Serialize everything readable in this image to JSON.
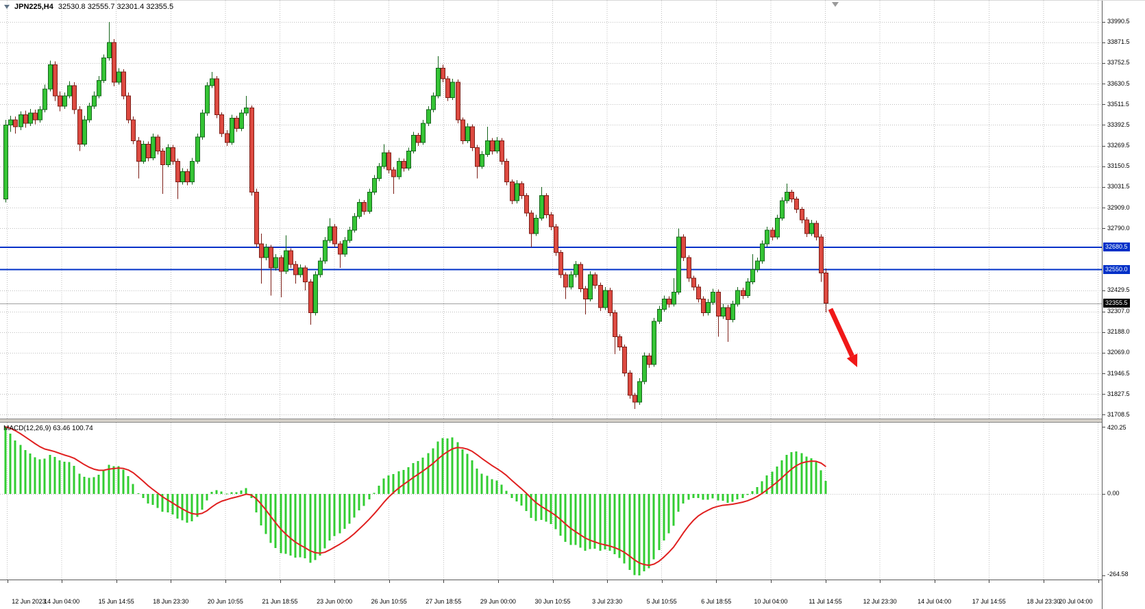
{
  "legend": {
    "symbol": "JPN225,H4",
    "ohlc": "32530.8 32555.7 32301.4 32355.5"
  },
  "chart_data": {
    "type": "candlestick",
    "symbol": "JPN225",
    "timeframe": "H4",
    "ohlc_current": {
      "open": 32530.8,
      "high": 32555.7,
      "low": 32301.4,
      "close": 32355.5
    },
    "ylim": [
      31685,
      34113
    ],
    "grid": true,
    "y_ticks": [
      "33990.5",
      "33871.5",
      "33752.5",
      "33630.5",
      "33511.5",
      "33392.5",
      "33269.5",
      "33150.5",
      "33031.5",
      "32909.0",
      "32790.0",
      "32429.5",
      "32307.0",
      "32188.0",
      "32069.0",
      "31946.5",
      "31827.5",
      "31708.5"
    ],
    "x_labels": [
      "12 Jun 2023",
      "14 Jun 04:00",
      "15 Jun 14:55",
      "18 Jun 23:30",
      "20 Jun 10:55",
      "21 Jun 18:55",
      "23 Jun 00:00",
      "26 Jun 10:55",
      "27 Jun 18:55",
      "29 Jun 00:00",
      "30 Jun 10:55",
      "3 Jul 23:30",
      "5 Jul 10:55",
      "6 Jul 18:55",
      "10 Jul 04:00",
      "11 Jul 14:55",
      "12 Jul 23:30",
      "14 Jul 04:00",
      "17 Jul 14:55",
      "18 Jul 23:30",
      "20 Jul 04:00"
    ],
    "horizontal_lines": [
      {
        "price": 32680.5,
        "label": "32680.5",
        "color": "#0030c8"
      },
      {
        "price": 32550.0,
        "label": "32550.0",
        "color": "#0030c8"
      }
    ],
    "bid": {
      "price": 32355.5,
      "label": "32355.5"
    },
    "annotations": [
      {
        "type": "arrow",
        "color": "#f01818",
        "from": {
          "x": 1212,
          "y": 450
        },
        "to": {
          "x": 1251,
          "y": 535
        }
      }
    ],
    "colors": {
      "up_fill": "#35c435",
      "up_stroke": "#14641a",
      "down_fill": "#dd4a41",
      "down_stroke": "#7c1d16",
      "grid": "#bcbcbc",
      "bid_line": "#a0a0a0",
      "axis_text": "#000000"
    },
    "candles": [
      [
        32960,
        33420,
        32940,
        33390
      ],
      [
        33390,
        33445,
        33350,
        33420
      ],
      [
        33420,
        33440,
        33340,
        33380
      ],
      [
        33380,
        33470,
        33360,
        33450
      ],
      [
        33450,
        33475,
        33375,
        33400
      ],
      [
        33400,
        33485,
        33385,
        33460
      ],
      [
        33460,
        33480,
        33395,
        33420
      ],
      [
        33420,
        33500,
        33405,
        33480
      ],
      [
        33480,
        33625,
        33465,
        33600
      ],
      [
        33600,
        33765,
        33585,
        33740
      ],
      [
        33740,
        33760,
        33530,
        33560
      ],
      [
        33560,
        33585,
        33470,
        33500
      ],
      [
        33500,
        33580,
        33485,
        33560
      ],
      [
        33560,
        33645,
        33545,
        33620
      ],
      [
        33620,
        33640,
        33455,
        33480
      ],
      [
        33480,
        33500,
        33240,
        33280
      ],
      [
        33280,
        33445,
        33265,
        33420
      ],
      [
        33420,
        33520,
        33405,
        33500
      ],
      [
        33500,
        33585,
        33485,
        33560
      ],
      [
        33560,
        33675,
        33545,
        33650
      ],
      [
        33650,
        33800,
        33635,
        33780
      ],
      [
        33780,
        33990,
        33765,
        33870
      ],
      [
        33870,
        33890,
        33615,
        33640
      ],
      [
        33640,
        33720,
        33625,
        33700
      ],
      [
        33700,
        33715,
        33540,
        33560
      ],
      [
        33560,
        33580,
        33400,
        33420
      ],
      [
        33420,
        33440,
        33280,
        33300
      ],
      [
        33300,
        33320,
        33080,
        33180
      ],
      [
        33180,
        33300,
        33165,
        33280
      ],
      [
        33280,
        33295,
        33180,
        33200
      ],
      [
        33200,
        33340,
        33185,
        33320
      ],
      [
        33320,
        33335,
        33220,
        33240
      ],
      [
        33240,
        33255,
        32990,
        33160
      ],
      [
        33160,
        33280,
        33145,
        33260
      ],
      [
        33260,
        33275,
        33160,
        33180
      ],
      [
        33180,
        33195,
        32960,
        33060
      ],
      [
        33060,
        33140,
        33045,
        33120
      ],
      [
        33120,
        33135,
        33040,
        33060
      ],
      [
        33060,
        33200,
        33045,
        33180
      ],
      [
        33180,
        33340,
        33165,
        33320
      ],
      [
        33320,
        33480,
        33305,
        33460
      ],
      [
        33460,
        33640,
        33445,
        33620
      ],
      [
        33620,
        33700,
        33605,
        33660
      ],
      [
        33660,
        33675,
        33430,
        33450
      ],
      [
        33450,
        33465,
        33320,
        33340
      ],
      [
        33340,
        33360,
        33270,
        33290
      ],
      [
        33290,
        33450,
        33275,
        33430
      ],
      [
        33430,
        33445,
        33350,
        33370
      ],
      [
        33370,
        33480,
        33355,
        33460
      ],
      [
        33460,
        33560,
        33445,
        33490
      ],
      [
        33490,
        33505,
        32980,
        33000
      ],
      [
        33000,
        33020,
        32680,
        32700
      ],
      [
        32700,
        32760,
        32470,
        32620
      ],
      [
        32620,
        32700,
        32605,
        32680
      ],
      [
        32680,
        32695,
        32400,
        32560
      ],
      [
        32560,
        32640,
        32545,
        32620
      ],
      [
        32620,
        32635,
        32390,
        32540
      ],
      [
        32540,
        32750,
        32525,
        32660
      ],
      [
        32660,
        32675,
        32560,
        32580
      ],
      [
        32580,
        32600,
        32470,
        32520
      ],
      [
        32520,
        32580,
        32505,
        32560
      ],
      [
        32560,
        32575,
        32430,
        32480
      ],
      [
        32480,
        32495,
        32230,
        32300
      ],
      [
        32300,
        32540,
        32285,
        32520
      ],
      [
        32520,
        32620,
        32505,
        32600
      ],
      [
        32600,
        32740,
        32585,
        32720
      ],
      [
        32720,
        32850,
        32705,
        32800
      ],
      [
        32800,
        32815,
        32680,
        32700
      ],
      [
        32700,
        32715,
        32560,
        32640
      ],
      [
        32640,
        32740,
        32625,
        32720
      ],
      [
        32720,
        32800,
        32705,
        32780
      ],
      [
        32780,
        32880,
        32765,
        32860
      ],
      [
        32860,
        32960,
        32845,
        32940
      ],
      [
        32940,
        32955,
        32870,
        32890
      ],
      [
        32890,
        33020,
        32875,
        33000
      ],
      [
        33000,
        33100,
        32985,
        33080
      ],
      [
        33080,
        33170,
        33065,
        33150
      ],
      [
        33150,
        33280,
        33135,
        33230
      ],
      [
        33230,
        33245,
        33110,
        33130
      ],
      [
        33130,
        33145,
        32990,
        33090
      ],
      [
        33090,
        33200,
        33075,
        33180
      ],
      [
        33180,
        33195,
        33120,
        33140
      ],
      [
        33140,
        33260,
        33125,
        33240
      ],
      [
        33240,
        33350,
        33225,
        33330
      ],
      [
        33330,
        33345,
        33270,
        33290
      ],
      [
        33290,
        33420,
        33275,
        33400
      ],
      [
        33400,
        33500,
        33385,
        33480
      ],
      [
        33480,
        33580,
        33465,
        33560
      ],
      [
        33560,
        33790,
        33545,
        33720
      ],
      [
        33720,
        33740,
        33640,
        33660
      ],
      [
        33660,
        33675,
        33530,
        33550
      ],
      [
        33550,
        33660,
        33535,
        33640
      ],
      [
        33640,
        33655,
        33400,
        33420
      ],
      [
        33420,
        33435,
        33280,
        33300
      ],
      [
        33300,
        33400,
        33285,
        33380
      ],
      [
        33380,
        33395,
        33240,
        33260
      ],
      [
        33260,
        33275,
        33080,
        33150
      ],
      [
        33150,
        33240,
        33135,
        33220
      ],
      [
        33220,
        33380,
        33205,
        33300
      ],
      [
        33300,
        33315,
        33220,
        33240
      ],
      [
        33240,
        33320,
        33225,
        33300
      ],
      [
        33300,
        33315,
        33160,
        33180
      ],
      [
        33180,
        33195,
        33040,
        33060
      ],
      [
        33060,
        33075,
        32930,
        32950
      ],
      [
        32950,
        33070,
        32935,
        33050
      ],
      [
        33050,
        33065,
        32960,
        32980
      ],
      [
        32980,
        32995,
        32860,
        32880
      ],
      [
        32880,
        32895,
        32680,
        32760
      ],
      [
        32760,
        32870,
        32745,
        32850
      ],
      [
        32850,
        33030,
        32835,
        32980
      ],
      [
        32980,
        32995,
        32850,
        32870
      ],
      [
        32870,
        32885,
        32780,
        32800
      ],
      [
        32800,
        32815,
        32630,
        32650
      ],
      [
        32650,
        32665,
        32500,
        32520
      ],
      [
        32520,
        32535,
        32380,
        32450
      ],
      [
        32450,
        32540,
        32435,
        32520
      ],
      [
        32520,
        32600,
        32505,
        32580
      ],
      [
        32580,
        32595,
        32420,
        32440
      ],
      [
        32440,
        32455,
        32290,
        32380
      ],
      [
        32380,
        32540,
        32365,
        32520
      ],
      [
        32520,
        32535,
        32440,
        32460
      ],
      [
        32460,
        32475,
        32310,
        32330
      ],
      [
        32330,
        32450,
        32315,
        32430
      ],
      [
        32430,
        32445,
        32280,
        32300
      ],
      [
        32300,
        32315,
        32060,
        32160
      ],
      [
        32160,
        32175,
        32080,
        32100
      ],
      [
        32100,
        32115,
        31930,
        31950
      ],
      [
        31950,
        31965,
        31800,
        31820
      ],
      [
        31820,
        31835,
        31740,
        31780
      ],
      [
        31780,
        31920,
        31765,
        31900
      ],
      [
        31900,
        32070,
        31885,
        32050
      ],
      [
        32050,
        32065,
        31980,
        32000
      ],
      [
        32000,
        32270,
        31985,
        32250
      ],
      [
        32250,
        32340,
        32235,
        32320
      ],
      [
        32320,
        32400,
        32305,
        32380
      ],
      [
        32380,
        32395,
        32330,
        32350
      ],
      [
        32350,
        32500,
        32335,
        32420
      ],
      [
        32420,
        32790,
        32405,
        32740
      ],
      [
        32740,
        32755,
        32600,
        32620
      ],
      [
        32620,
        32635,
        32480,
        32500
      ],
      [
        32500,
        32515,
        32430,
        32450
      ],
      [
        32450,
        32465,
        32360,
        32380
      ],
      [
        32380,
        32395,
        32280,
        32300
      ],
      [
        32300,
        32380,
        32285,
        32360
      ],
      [
        32360,
        32440,
        32345,
        32420
      ],
      [
        32420,
        32435,
        32160,
        32280
      ],
      [
        32280,
        32350,
        32265,
        32330
      ],
      [
        32330,
        32345,
        32130,
        32260
      ],
      [
        32260,
        32370,
        32245,
        32350
      ],
      [
        32350,
        32450,
        32335,
        32430
      ],
      [
        32430,
        32445,
        32380,
        32400
      ],
      [
        32400,
        32500,
        32385,
        32480
      ],
      [
        32480,
        32640,
        32465,
        32550
      ],
      [
        32550,
        32620,
        32535,
        32600
      ],
      [
        32600,
        32720,
        32585,
        32700
      ],
      [
        32700,
        32800,
        32685,
        32780
      ],
      [
        32780,
        32795,
        32720,
        32740
      ],
      [
        32740,
        32870,
        32725,
        32850
      ],
      [
        32850,
        32970,
        32835,
        32950
      ],
      [
        32950,
        33050,
        32935,
        33000
      ],
      [
        33000,
        33015,
        32940,
        32960
      ],
      [
        32960,
        32975,
        32880,
        32900
      ],
      [
        32900,
        32915,
        32820,
        32840
      ],
      [
        32840,
        32855,
        32740,
        32760
      ],
      [
        32760,
        32840,
        32745,
        32820
      ],
      [
        32820,
        32835,
        32720,
        32740
      ],
      [
        32740,
        32755,
        32480,
        32530.8
      ],
      [
        32530.8,
        32555.7,
        32301.4,
        32355.5
      ]
    ],
    "macd": {
      "type": "macd",
      "label": "MACD(12,26,9) 63.46 100.74",
      "params": [
        12,
        26,
        9
      ],
      "macd_value": 63.46,
      "signal_value": 100.74,
      "y_ticks": [
        "420.25",
        "0.00",
        "-264.58"
      ],
      "histogram_color": "#32cd32",
      "signal_color": "#e02020"
    }
  }
}
